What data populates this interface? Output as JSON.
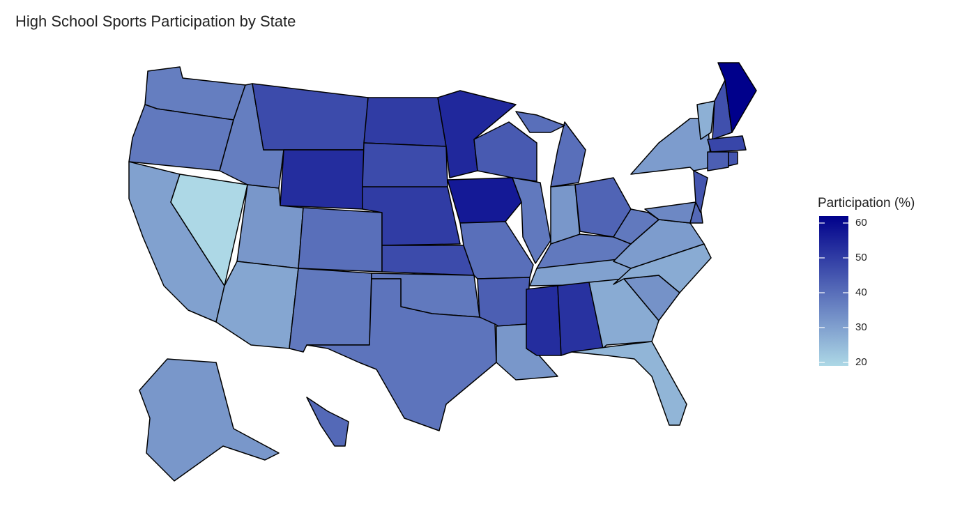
{
  "chart_data": {
    "type": "choropleth",
    "title": "High School Sports Participation by State",
    "legend_title": "Participation (%)",
    "low_color": "#add8e6",
    "high_color": "#00008b",
    "colorlim": [
      19,
      62
    ],
    "colorticks": [
      20,
      30,
      40,
      50,
      60
    ],
    "values": [
      37,
      38,
      30,
      19,
      37,
      47,
      53,
      32,
      29,
      40,
      38,
      50,
      47,
      50,
      47,
      38,
      39,
      54,
      57,
      40,
      43,
      32,
      44,
      38,
      40,
      40,
      32,
      42,
      38,
      30,
      53,
      52,
      28,
      26,
      33,
      28,
      31,
      38,
      35,
      41,
      45,
      31,
      27,
      46,
      62,
      48,
      43,
      45,
      32,
      41
    ]
  }
}
